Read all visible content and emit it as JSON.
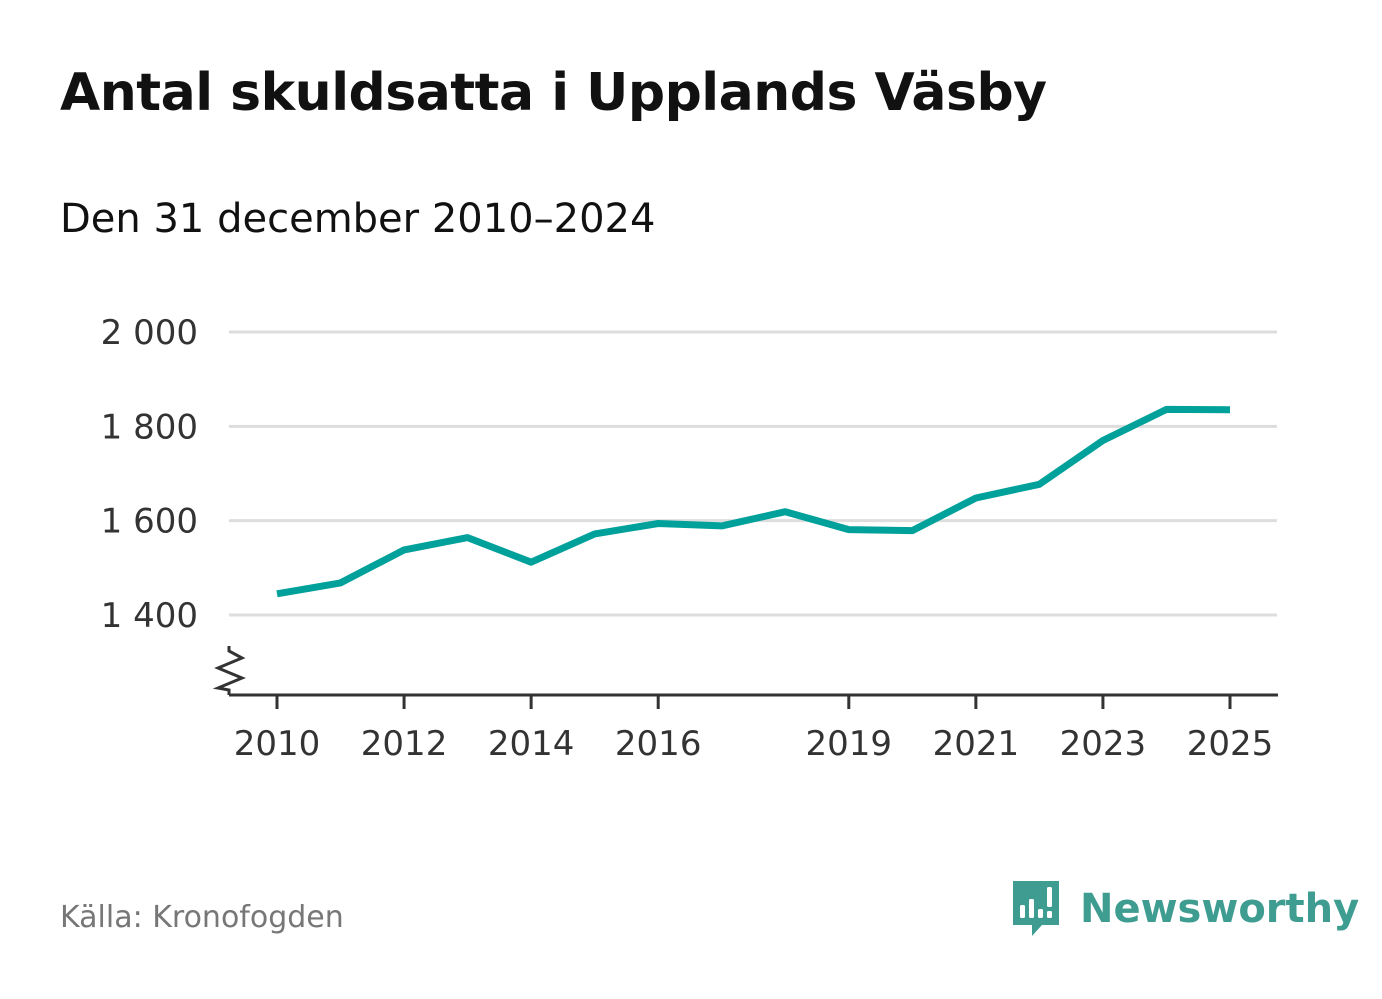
{
  "title": "Antal skuldsatta i Upplands Väsby",
  "subtitle": "Den 31 december 2010–2024",
  "source": "Källa: Kronofogden",
  "brand": {
    "name": "Newsworthy",
    "logo_icon": "newsworthy-bar-chart-speech-bubble-icon",
    "color": "#3e9c91"
  },
  "colors": {
    "line": "#00a19a",
    "grid": "#dddddd",
    "axis": "#333333",
    "tick_label": "#333333"
  },
  "chart_data": {
    "type": "line",
    "title": "Antal skuldsatta i Upplands Väsby",
    "subtitle": "Den 31 december 2010–2024",
    "xlabel": "",
    "ylabel": "",
    "xlim": [
      2009.6,
      2025.8
    ],
    "ylim": [
      1300,
      2000
    ],
    "y_axis_break": true,
    "grid": "horizontal",
    "x_ticks": [
      2010,
      2012,
      2014,
      2016,
      2019,
      2021,
      2023,
      2025
    ],
    "x_tick_labels": [
      "2010",
      "2012",
      "2014",
      "2016",
      "2019",
      "2021",
      "2023",
      "2025"
    ],
    "y_ticks": [
      1400,
      1600,
      1800,
      2000
    ],
    "y_tick_labels": [
      "1 400",
      "1 600",
      "1 800",
      "2 000"
    ],
    "series": [
      {
        "name": "Antal skuldsatta",
        "x": [
          2010.0,
          2011.0,
          2012.0,
          2013.0,
          2014.0,
          2015.0,
          2016.0,
          2017.0,
          2018.0,
          2019.0,
          2020.0,
          2021.0,
          2022.0,
          2023.0,
          2024.0,
          2025.0
        ],
        "values": [
          1445,
          1468,
          1538,
          1564,
          1512,
          1572,
          1594,
          1589,
          1619,
          1581,
          1579,
          1648,
          1677,
          1770,
          1836,
          1835
        ]
      }
    ]
  }
}
